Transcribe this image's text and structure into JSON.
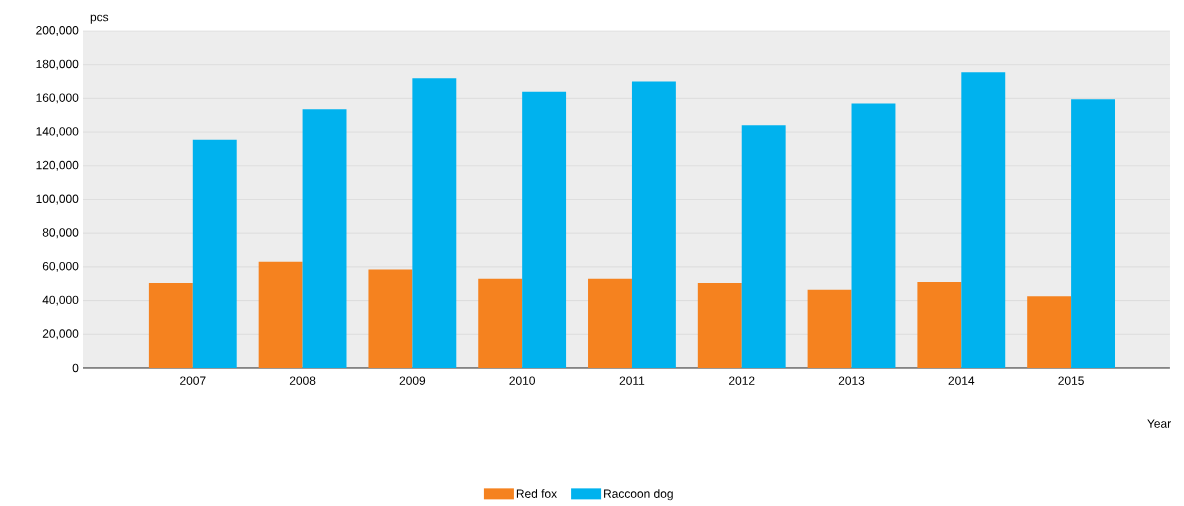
{
  "chart_data": {
    "type": "bar",
    "xlabel": "Year",
    "ylabel": "pcs",
    "categories": [
      "2007",
      "2008",
      "2009",
      "2010",
      "2011",
      "2012",
      "2013",
      "2014",
      "2015"
    ],
    "series": [
      {
        "name": "Red fox",
        "color": "#f5821f",
        "values": [
          50500,
          63000,
          58500,
          53000,
          53000,
          50500,
          46500,
          51000,
          42500
        ]
      },
      {
        "name": "Raccoon dog",
        "color": "#00b2ee",
        "values": [
          135500,
          153500,
          172000,
          164000,
          170000,
          144000,
          157000,
          175500,
          159500
        ]
      }
    ],
    "ylim": [
      0,
      200000
    ],
    "yticks": [
      {
        "value": 0,
        "label": "0"
      },
      {
        "value": 20000,
        "label": "20,000"
      },
      {
        "value": 40000,
        "label": "40,000"
      },
      {
        "value": 60000,
        "label": "60,000"
      },
      {
        "value": 80000,
        "label": "80,000"
      },
      {
        "value": 100000,
        "label": "100,000"
      },
      {
        "value": 120000,
        "label": "120,000"
      },
      {
        "value": 140000,
        "label": "140,000"
      },
      {
        "value": 160000,
        "label": "160,000"
      },
      {
        "value": 180000,
        "label": "180,000"
      },
      {
        "value": 200000,
        "label": "200,000"
      }
    ],
    "grid": "y",
    "legend": "bottom"
  }
}
